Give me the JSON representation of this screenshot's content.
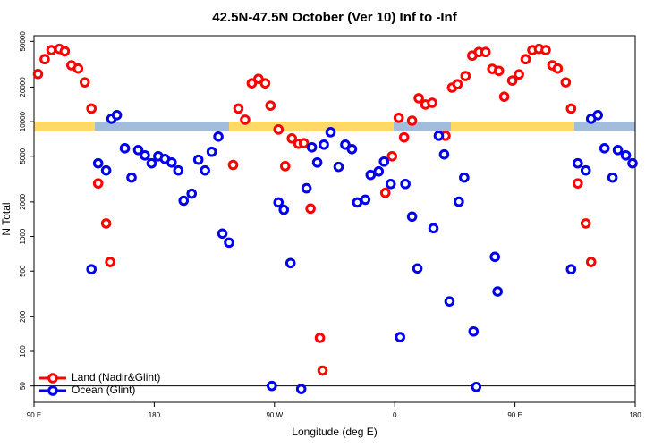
{
  "chart_data": {
    "type": "scatter",
    "title": "42.5N-47.5N October (Ver 10)   Inf to -Inf",
    "x_label": "Longitude (deg E)",
    "y_label": "N Total",
    "xlim": [
      90,
      540
    ],
    "xticks": [
      {
        "value": 90,
        "label": "90 E"
      },
      180,
      {
        "value": 270,
        "label": "90 W"
      },
      {
        "value": 360,
        "label": "0"
      },
      {
        "value": 450,
        "label": "90 E"
      },
      {
        "value": 540,
        "label": "180"
      }
    ],
    "ylim": [
      36,
      56000
    ],
    "log_y": true,
    "yticks": [
      50,
      100,
      200,
      500,
      1000,
      2000,
      5000,
      10000,
      20000,
      50000
    ],
    "reference_line": 50,
    "legend": "lower left",
    "series": [
      {
        "name": "Land (Nadir&Glint)",
        "color": "#ff0000",
        "x": [
          93,
          98,
          103,
          109,
          113,
          118,
          123,
          128,
          133,
          138,
          144,
          147,
          239,
          243,
          248,
          253,
          258,
          263,
          267,
          273,
          278,
          283,
          288,
          292,
          297,
          304,
          306,
          353,
          358,
          363,
          367,
          373,
          378,
          383,
          388,
          398,
          403,
          407,
          413,
          418,
          423,
          428,
          433,
          438,
          442,
          448,
          453,
          458,
          463,
          468,
          473,
          478,
          482,
          488,
          492,
          497,
          503,
          507
        ],
        "values": [
          26000,
          35000,
          42000,
          43000,
          41000,
          31000,
          29000,
          22000,
          13000,
          2900,
          1300,
          600,
          4200,
          13000,
          10400,
          21600,
          23600,
          21600,
          13800,
          8550,
          4100,
          7150,
          6430,
          6500,
          1750,
          131,
          68,
          2400,
          5000,
          10800,
          7300,
          10200,
          16000,
          14100,
          14600,
          7540,
          19800,
          21200,
          25000,
          37600,
          40400,
          40400,
          28800,
          27700,
          16500,
          22800,
          25800,
          35000,
          42000,
          43000,
          42000,
          31000,
          29000,
          22000,
          13000,
          2900,
          1300,
          600
        ]
      },
      {
        "name": "Ocean (Glint)",
        "color": "#0000ee",
        "x": [
          133,
          138,
          144,
          148,
          152,
          158,
          163,
          168,
          173,
          178,
          183,
          188,
          193,
          198,
          202,
          208,
          213,
          218,
          223,
          228,
          231,
          236,
          268,
          273,
          277,
          282,
          290,
          294,
          298,
          302,
          307,
          312,
          318,
          323,
          328,
          332,
          338,
          342,
          348,
          352,
          357,
          364,
          368,
          373,
          377,
          389,
          393,
          397,
          401,
          408,
          412,
          419,
          421,
          435,
          437,
          492,
          497,
          503,
          507,
          512,
          517,
          523,
          527,
          533,
          538
        ],
        "values": [
          519,
          4340,
          3760,
          10600,
          11400,
          5870,
          3260,
          5670,
          5090,
          4340,
          5000,
          4740,
          4410,
          3760,
          2050,
          2360,
          4660,
          3760,
          5470,
          7410,
          1060,
          885,
          50,
          1980,
          1710,
          587,
          47,
          2630,
          5980,
          4410,
          6310,
          8100,
          4040,
          6310,
          5770,
          1980,
          2090,
          3440,
          3690,
          4490,
          2870,
          133,
          2870,
          1490,
          527,
          1180,
          7540,
          5190,
          272,
          2010,
          3260,
          149,
          49,
          665,
          332,
          519,
          4340,
          3760,
          10600,
          11400,
          5870,
          3260,
          5670,
          5090,
          4340
        ]
      }
    ]
  }
}
